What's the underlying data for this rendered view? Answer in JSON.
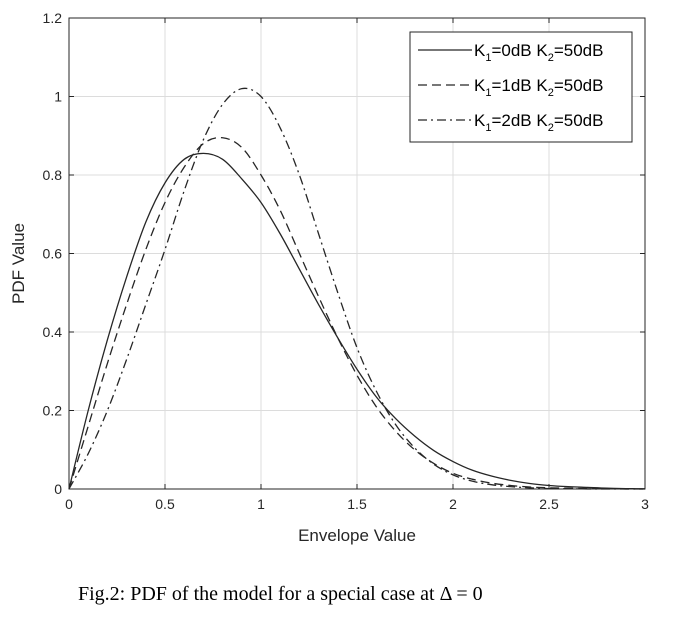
{
  "caption": {
    "text": "Fig.2: PDF of the model for a special case at  Δ = 0"
  },
  "chart_data": {
    "type": "line",
    "title": "",
    "xlabel": "Envelope Value",
    "ylabel": "PDF Value",
    "xlim": [
      0,
      3
    ],
    "ylim": [
      0,
      1.2
    ],
    "xticks": [
      0,
      0.5,
      1,
      1.5,
      2,
      2.5,
      3
    ],
    "xtick_labels": [
      "0",
      "0.5",
      "1",
      "1.5",
      "2",
      "2.5",
      "3"
    ],
    "yticks": [
      0,
      0.2,
      0.4,
      0.6,
      0.8,
      1,
      1.2
    ],
    "ytick_labels": [
      "0",
      "0.2",
      "0.4",
      "0.6",
      "0.8",
      "1",
      "1.2"
    ],
    "grid": true,
    "legend_position": "top-right",
    "colors": {
      "line": "#262626",
      "grid": "#dcdcdc",
      "axis": "#262626"
    },
    "series": [
      {
        "name": "K1=0dB K2=50dB",
        "legend_main": [
          "K",
          "=0dB K",
          "=50dB"
        ],
        "legend_subs": [
          "1",
          "2"
        ],
        "style": "solid",
        "x": [
          0,
          0.1,
          0.2,
          0.3,
          0.4,
          0.5,
          0.6,
          0.7,
          0.8,
          0.9,
          1.0,
          1.1,
          1.2,
          1.3,
          1.4,
          1.5,
          1.6,
          1.7,
          1.8,
          1.9,
          2.0,
          2.1,
          2.2,
          2.3,
          2.4,
          2.5,
          2.6,
          2.7,
          2.8,
          2.9,
          3.0
        ],
        "y": [
          0,
          0.2,
          0.38,
          0.54,
          0.68,
          0.78,
          0.84,
          0.855,
          0.84,
          0.79,
          0.73,
          0.65,
          0.56,
          0.47,
          0.385,
          0.305,
          0.235,
          0.18,
          0.135,
          0.098,
          0.07,
          0.048,
          0.033,
          0.022,
          0.014,
          0.009,
          0.006,
          0.004,
          0.002,
          0.001,
          0.0005
        ]
      },
      {
        "name": "K1=1dB K2=50dB",
        "legend_main": [
          "K",
          "=1dB K",
          "=50dB"
        ],
        "legend_subs": [
          "1",
          "2"
        ],
        "style": "dashed",
        "x": [
          0,
          0.1,
          0.2,
          0.3,
          0.4,
          0.5,
          0.6,
          0.7,
          0.8,
          0.9,
          1.0,
          1.1,
          1.2,
          1.3,
          1.4,
          1.5,
          1.6,
          1.7,
          1.8,
          1.9,
          2.0,
          2.1,
          2.2,
          2.3,
          2.4,
          2.5,
          2.6,
          2.7,
          2.8,
          2.9,
          3.0
        ],
        "y": [
          0,
          0.16,
          0.32,
          0.47,
          0.61,
          0.73,
          0.82,
          0.88,
          0.895,
          0.87,
          0.8,
          0.71,
          0.6,
          0.49,
          0.385,
          0.29,
          0.21,
          0.148,
          0.1,
          0.065,
          0.04,
          0.025,
          0.015,
          0.009,
          0.005,
          0.003,
          0.002,
          0.001,
          0.0005,
          0.0002,
          0
        ]
      },
      {
        "name": "K1=2dB K2=50dB",
        "legend_main": [
          "K",
          "=2dB K",
          "=50dB"
        ],
        "legend_subs": [
          "1",
          "2"
        ],
        "style": "dashdot",
        "x": [
          0,
          0.1,
          0.2,
          0.3,
          0.4,
          0.5,
          0.6,
          0.7,
          0.8,
          0.9,
          1.0,
          1.1,
          1.2,
          1.3,
          1.4,
          1.5,
          1.6,
          1.7,
          1.8,
          1.9,
          2.0,
          2.1,
          2.2,
          2.3,
          2.4,
          2.5,
          2.6,
          2.7,
          2.8,
          2.9,
          3.0
        ],
        "y": [
          0,
          0.09,
          0.2,
          0.33,
          0.47,
          0.61,
          0.76,
          0.89,
          0.98,
          1.02,
          1.0,
          0.92,
          0.8,
          0.65,
          0.5,
          0.36,
          0.25,
          0.165,
          0.105,
          0.063,
          0.036,
          0.02,
          0.011,
          0.006,
          0.003,
          0.001,
          0.0005,
          0.0002,
          0.0001,
          0,
          0
        ]
      }
    ]
  }
}
